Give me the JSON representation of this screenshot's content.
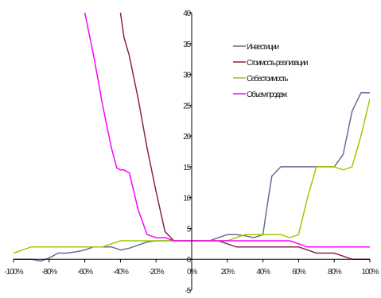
{
  "chart_data": {
    "type": "line",
    "title": "",
    "xlabel": "",
    "ylabel": "",
    "xlim": [
      -100,
      100
    ],
    "ylim": [
      -5,
      40
    ],
    "x_tick_labels": [
      "-100%",
      "-80%",
      "-60%",
      "-40%",
      "-20%",
      "0%",
      "20%",
      "40%",
      "60%",
      "80%",
      "100%"
    ],
    "y_tick_labels": [
      "-5",
      "0",
      "5",
      "10",
      "15",
      "20",
      "25",
      "30",
      "35",
      "40"
    ],
    "x_tick_values": [
      -100,
      -80,
      -60,
      -40,
      -20,
      0,
      20,
      40,
      60,
      80,
      100
    ],
    "y_tick_values": [
      -5,
      0,
      5,
      10,
      15,
      20,
      25,
      30,
      35,
      40
    ],
    "legend_position": "top-right",
    "grid": false,
    "series": [
      {
        "name": "Инвестиции",
        "color": "#6a6a96",
        "x": [
          -100,
          -90,
          -85,
          -80,
          -75,
          -70,
          -65,
          -60,
          -55,
          -50,
          -45,
          -40,
          -35,
          -30,
          -25,
          -20,
          -15,
          -10,
          -5,
          0,
          5,
          10,
          15,
          20,
          25,
          30,
          35,
          40,
          42,
          45,
          50,
          55,
          60,
          65,
          70,
          75,
          80,
          85,
          90,
          95,
          100
        ],
        "y": [
          0,
          0,
          -0.3,
          0.2,
          1,
          1,
          1.2,
          1.5,
          2,
          2,
          2,
          1.5,
          1.8,
          2.3,
          2.8,
          3,
          3,
          3,
          3,
          3,
          3,
          3,
          3.5,
          4,
          4,
          3.8,
          3.5,
          4,
          8,
          13.5,
          15,
          15,
          15,
          15,
          15,
          15,
          15,
          17,
          24,
          27,
          27
        ]
      },
      {
        "name": "Стоимость реализации",
        "color": "#8b2252",
        "x": [
          -40,
          -38,
          -35,
          -30,
          -25,
          -20,
          -15,
          -10,
          -5,
          0,
          5,
          10,
          15,
          20,
          25,
          30,
          35,
          40,
          45,
          50,
          55,
          60,
          65,
          70,
          75,
          80,
          85,
          90,
          95,
          100
        ],
        "y": [
          40,
          36,
          33,
          26,
          18,
          11,
          4.5,
          3,
          3,
          3,
          3,
          3,
          3,
          2.5,
          2,
          2,
          2,
          2,
          2,
          2,
          2,
          2,
          1.5,
          1,
          1,
          1,
          0.5,
          0,
          0,
          0
        ]
      },
      {
        "name": "Себестоимость",
        "color": "#99cc00",
        "x": [
          -100,
          -95,
          -90,
          -85,
          -80,
          -75,
          -70,
          -65,
          -60,
          -55,
          -50,
          -45,
          -40,
          -35,
          -30,
          -25,
          -20,
          -15,
          -10,
          -5,
          0,
          5,
          10,
          15,
          20,
          25,
          30,
          35,
          40,
          45,
          50,
          55,
          60,
          65,
          70,
          75,
          80,
          85,
          90,
          95,
          100
        ],
        "y": [
          1,
          1.5,
          2,
          2,
          2,
          2,
          2,
          2,
          2,
          2,
          2,
          2.5,
          3,
          3,
          3,
          3,
          3,
          3,
          3,
          3,
          3,
          3,
          3,
          3,
          3,
          3.5,
          4,
          4,
          4,
          4,
          4,
          3.5,
          4,
          10,
          15,
          15,
          15,
          14.5,
          15,
          20,
          26
        ]
      },
      {
        "name": "Объем продаж",
        "color": "#ff00ff",
        "x": [
          -60,
          -55,
          -50,
          -45,
          -42,
          -40,
          -38,
          -35,
          -30,
          -25,
          -20,
          -15,
          -10,
          -5,
          0,
          5,
          10,
          15,
          20,
          25,
          30,
          35,
          40,
          45,
          50,
          55,
          60,
          65,
          70,
          75,
          80,
          85,
          90,
          95,
          100
        ],
        "y": [
          40,
          33,
          25,
          18,
          14.8,
          14.5,
          14.5,
          14,
          8,
          4,
          3.5,
          3.5,
          3,
          3,
          3,
          3,
          3,
          3,
          3,
          3,
          3,
          3,
          3,
          3,
          3,
          3,
          2.5,
          2,
          2,
          2,
          2,
          2,
          2,
          2,
          2
        ]
      }
    ]
  }
}
